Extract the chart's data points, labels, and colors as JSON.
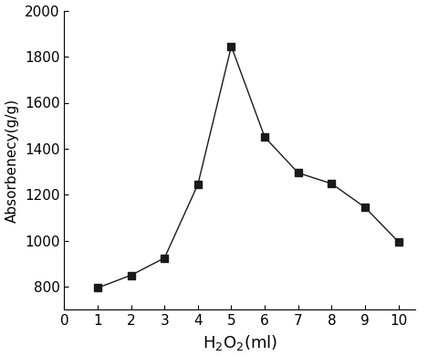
{
  "x": [
    1,
    2,
    3,
    4,
    5,
    6,
    7,
    8,
    9,
    10
  ],
  "y": [
    795,
    850,
    925,
    1245,
    1845,
    1450,
    1295,
    1248,
    1145,
    995
  ],
  "xlabel": "H$_2$O$_2$(ml)",
  "ylabel": "Absorbenecy(g/g)",
  "xlim": [
    0,
    10.5
  ],
  "ylim": [
    700,
    2000
  ],
  "yticks": [
    800,
    1000,
    1200,
    1400,
    1600,
    1800,
    2000
  ],
  "xticks": [
    0,
    1,
    2,
    3,
    4,
    5,
    6,
    7,
    8,
    9,
    10
  ],
  "marker": "s",
  "marker_color": "#1a1a1a",
  "line_color": "#1a1a1a",
  "line_style": "-",
  "marker_size": 6,
  "line_width": 1.0,
  "background_color": "#ffffff",
  "xlabel_fontsize": 13,
  "ylabel_fontsize": 11,
  "tick_labelsize": 11
}
